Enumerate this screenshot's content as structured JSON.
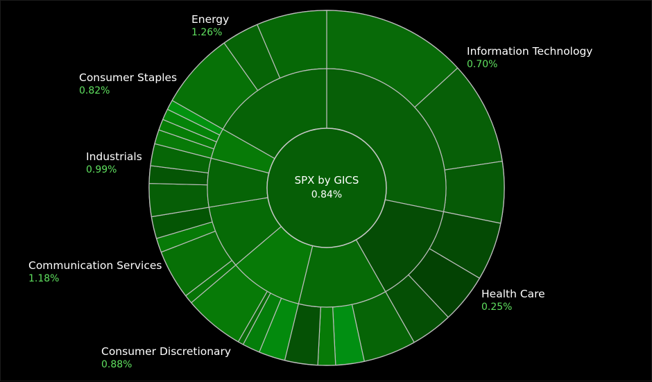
{
  "chart_data": {
    "type": "sunburst",
    "center": {
      "label": "SPX by GICS",
      "value": "0.84%"
    },
    "sectors": [
      {
        "name": "Information Technology",
        "change": "0.70%",
        "weight": 28.2,
        "color": "#075f07",
        "children": [
          {
            "weight": 13.2,
            "color": "#086a08"
          },
          {
            "weight": 9.4,
            "color": "#075f07"
          },
          {
            "weight": 5.6,
            "color": "#065a06"
          }
        ]
      },
      {
        "name": "Health Care",
        "change": "0.25%",
        "weight": 13.6,
        "color": "#054c05",
        "children": [
          {
            "weight": 5.3,
            "color": "#044a04"
          },
          {
            "weight": 4.5,
            "color": "#034203"
          },
          {
            "weight": 3.8,
            "color": "#054f05"
          }
        ]
      },
      {
        "name": "Consumer Discretionary",
        "change": "0.88%",
        "weight": 12.0,
        "color": "#066a06",
        "children": [
          {
            "weight": 4.8,
            "color": "#066406"
          },
          {
            "weight": 2.6,
            "color": "#018f12"
          },
          {
            "weight": 1.6,
            "color": "#077a07"
          },
          {
            "weight": 3.0,
            "color": "#055105"
          }
        ]
      },
      {
        "name": "Communication Services",
        "change": "1.18%",
        "weight": 10.0,
        "color": "#077a07",
        "children": [
          {
            "weight": 2.4,
            "color": "#038a0d"
          },
          {
            "weight": 1.6,
            "color": "#047e0a"
          },
          {
            "weight": 0.5,
            "color": "#066d06"
          },
          {
            "weight": 5.5,
            "color": "#077a07"
          }
        ]
      },
      {
        "name": "Industrials",
        "change": "0.99%",
        "weight": 8.6,
        "color": "#066a06",
        "children": [
          {
            "weight": 0.8,
            "color": "#067406"
          },
          {
            "weight": 4.5,
            "color": "#077006"
          },
          {
            "weight": 1.3,
            "color": "#077a07"
          },
          {
            "weight": 2.0,
            "color": "#045504"
          }
        ]
      },
      {
        "name": "Consumer Staples",
        "change": "0.82%",
        "weight": 6.6,
        "color": "#066406",
        "children": [
          {
            "weight": 3.0,
            "color": "#065e06"
          },
          {
            "weight": 1.6,
            "color": "#055505"
          },
          {
            "weight": 2.0,
            "color": "#066606"
          }
        ]
      },
      {
        "name": "Energy",
        "change": "1.26%",
        "weight": 4.2,
        "color": "#077a07",
        "children": [
          {
            "weight": 1.3,
            "color": "#087a08"
          },
          {
            "weight": 1.0,
            "color": "#067d06"
          },
          {
            "weight": 1.0,
            "color": "#048308"
          },
          {
            "weight": 0.9,
            "color": "#02920f"
          }
        ]
      }
    ],
    "rest": {
      "weight": 16.8,
      "color": "#066206",
      "children": [
        {
          "weight": 7.0,
          "color": "#077107"
        },
        {
          "weight": 3.4,
          "color": "#066406"
        },
        {
          "weight": 6.4,
          "color": "#066806"
        }
      ]
    }
  }
}
